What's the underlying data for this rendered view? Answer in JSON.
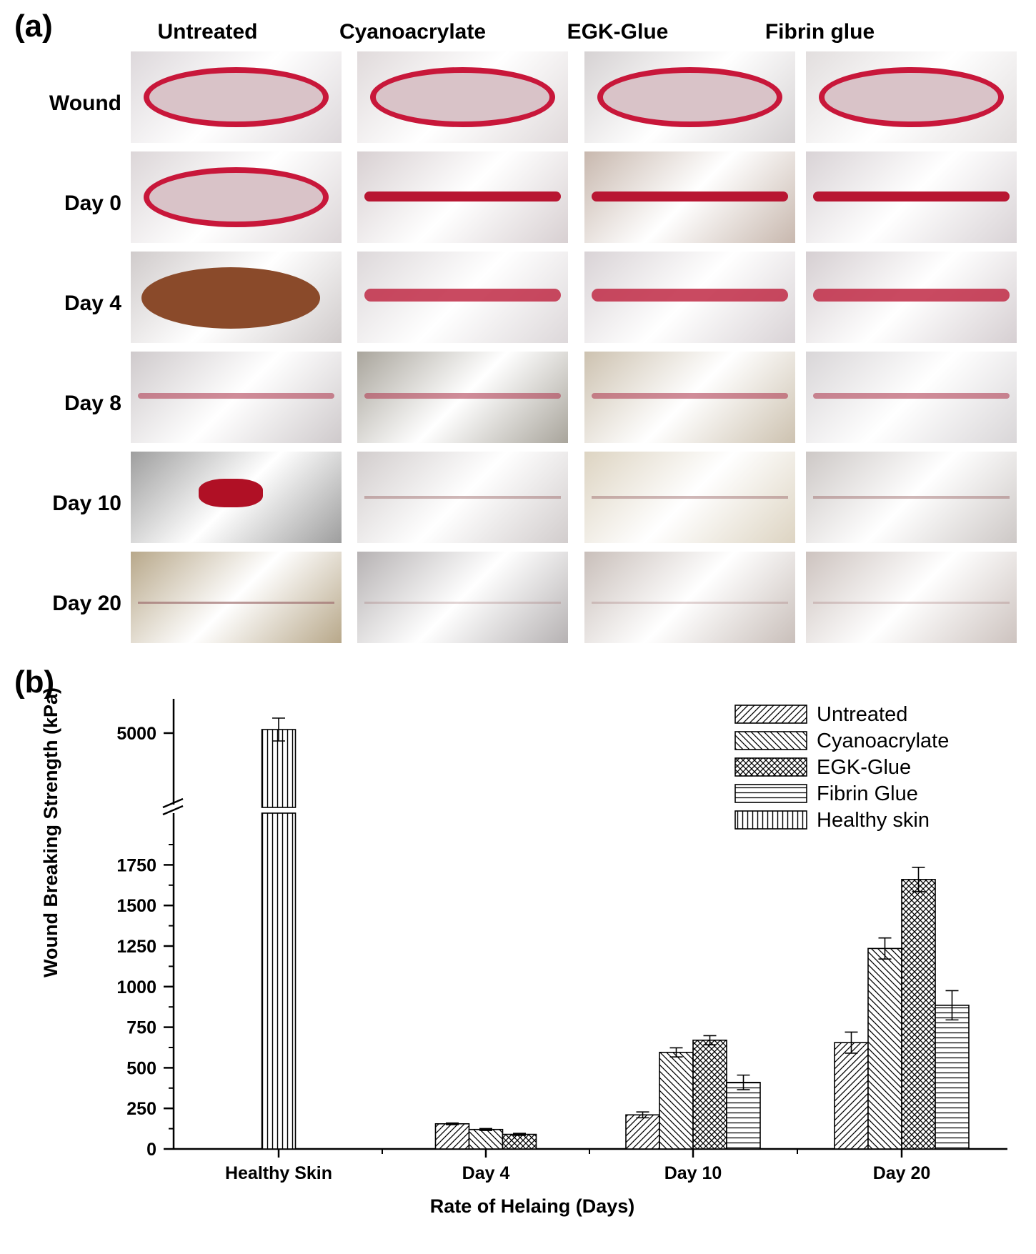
{
  "panel_a": {
    "label": "(a)",
    "columns": [
      "Untreated",
      "Cyanoacrylate",
      "EGK-Glue",
      "Fibrin glue"
    ],
    "rows": [
      "Wound",
      "Day 0",
      "Day 4",
      "Day 8",
      "Day 10",
      "Day 20"
    ]
  },
  "panel_b": {
    "label": "(b)"
  },
  "chart_data": {
    "type": "bar",
    "ylabel": "Wound Breaking Strength (kPa)",
    "xlabel": "Rate of Helaing (Days)",
    "categories": [
      "Healthy Skin",
      "Day 4",
      "Day 10",
      "Day 20"
    ],
    "yticks_lower": [
      "0",
      "250",
      "500",
      "750",
      "1000",
      "1250",
      "1500",
      "1750"
    ],
    "yticks_upper": [
      "5000"
    ],
    "ylim_lower": [
      0,
      1950
    ],
    "axis_break": true,
    "legend_position": "top-right",
    "legend": [
      "Untreated",
      "Cyanoacrylate",
      "EGK-Glue",
      "Fibrin Glue",
      "Healthy skin"
    ],
    "series": [
      {
        "name": "Untreated",
        "values": [
          null,
          155,
          210,
          655
        ],
        "errors": [
          null,
          5,
          18,
          65
        ]
      },
      {
        "name": "Cyanoacrylate",
        "values": [
          null,
          120,
          595,
          1235
        ],
        "errors": [
          null,
          6,
          28,
          65
        ]
      },
      {
        "name": "EGK-Glue",
        "values": [
          null,
          90,
          670,
          1660
        ],
        "errors": [
          null,
          6,
          28,
          75
        ]
      },
      {
        "name": "Fibrin Glue",
        "values": [
          null,
          null,
          410,
          885
        ],
        "errors": [
          null,
          null,
          45,
          90
        ]
      },
      {
        "name": "Healthy skin",
        "values": [
          5050,
          null,
          null,
          null
        ],
        "errors": [
          160,
          null,
          null,
          null
        ]
      }
    ]
  }
}
